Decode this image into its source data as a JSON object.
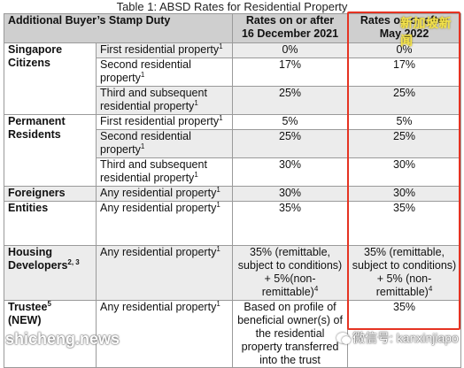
{
  "caption": "Table 1: ABSD Rates for Residential Property",
  "headers": {
    "c0": "Additional Buyer’s Stamp Duty",
    "c2_line1": "Rates on or after",
    "c2_line2": "16 December 2021",
    "c3_line1": "Rates on or after",
    "c3_line2": "May 2022"
  },
  "rows": [
    {
      "cat": "Singapore Citizens",
      "prop": "First residential property",
      "sup": "1",
      "old": "0%",
      "new": "0%"
    },
    {
      "prop": "Second residential property",
      "sup": "1",
      "old": "17%",
      "new": "17%"
    },
    {
      "prop": "Third and subsequent residential property",
      "sup": "1",
      "old": "25%",
      "new": "25%"
    },
    {
      "cat": "Permanent Residents",
      "prop": "First residential property",
      "sup": "1",
      "old": "5%",
      "new": "5%"
    },
    {
      "prop": "Second residential property",
      "sup": "1",
      "old": "25%",
      "new": "25%"
    },
    {
      "prop": "Third and subsequent residential property",
      "sup": "1",
      "old": "30%",
      "new": "30%"
    },
    {
      "cat": "Foreigners",
      "prop": "Any residential property",
      "sup": "1",
      "old": "30%",
      "new": "30%"
    },
    {
      "cat": "Entities",
      "prop": "Any residential property",
      "sup": "1",
      "old": "35%",
      "new": "35%"
    },
    {
      "cat": "Housing Developers",
      "cat_sup": "2, 3",
      "prop": "Any residential property",
      "sup": "1",
      "old": "35% (remittable, subject to conditions) + 5%(non-remittable)",
      "old_sup": "4",
      "new": "35% (remittable, subject to conditions) + 5% (non-remittable)",
      "new_sup": "4"
    },
    {
      "cat": "Trustee",
      "cat_sup": "5",
      "cat_line2": "(NEW)",
      "prop": "Any residential property",
      "sup": "1",
      "old": "Based on profile of beneficial owner(s) of the residential property transferred into the trust",
      "new": "35%"
    }
  ],
  "watermarks": {
    "top": "新加坡新闻",
    "left": "shicheng.news",
    "right": "微信号: kanxinjiapo"
  }
}
